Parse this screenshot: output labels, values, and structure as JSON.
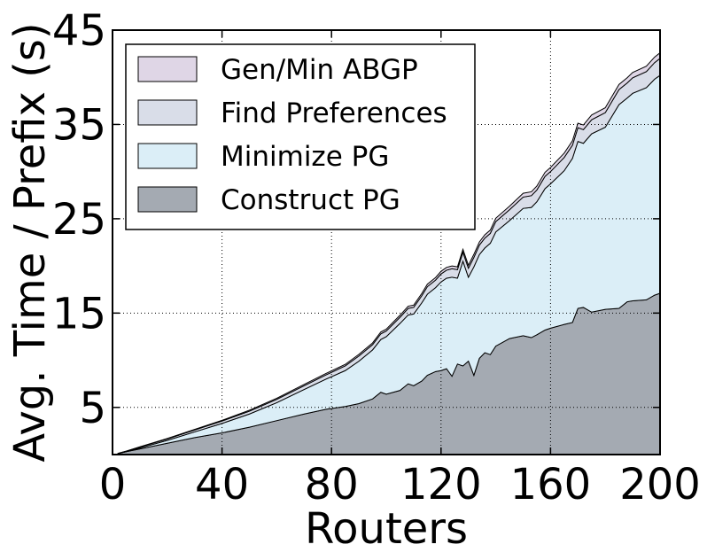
{
  "chart_data": {
    "type": "area",
    "stacked": true,
    "xlabel": "Routers",
    "ylabel": "Avg. Time / Prefix (s)",
    "xlim": [
      0,
      200
    ],
    "ylim": [
      0,
      45
    ],
    "xticks": [
      0,
      40,
      80,
      120,
      160,
      200
    ],
    "yticks": [
      5,
      15,
      25,
      35,
      45
    ],
    "grid": true,
    "legend_position": "upper-left",
    "x": [
      2,
      5,
      10,
      20,
      30,
      40,
      50,
      60,
      70,
      78,
      85,
      90,
      95,
      98,
      100,
      105,
      108,
      110,
      113,
      115,
      118,
      120,
      122,
      124,
      126,
      128,
      130,
      132,
      134,
      136,
      138,
      140,
      145,
      150,
      153,
      155,
      158,
      160,
      165,
      168,
      170,
      172,
      175,
      180,
      185,
      188,
      190,
      195,
      198,
      200
    ],
    "series": [
      {
        "name": "Construct PG",
        "color": "#a4aab2",
        "values": [
          0.1,
          0.3,
          0.6,
          1.2,
          1.8,
          2.3,
          2.9,
          3.6,
          4.3,
          4.8,
          5.1,
          5.4,
          5.9,
          6.6,
          6.4,
          6.8,
          7.5,
          7.3,
          7.8,
          8.4,
          8.8,
          8.9,
          9.1,
          8.3,
          9.6,
          9.4,
          9.9,
          8.4,
          10.2,
          10.8,
          10.6,
          11.5,
          12.3,
          12.6,
          12.4,
          12.7,
          13.2,
          13.4,
          13.8,
          14.0,
          15.5,
          15.6,
          15.1,
          15.4,
          15.5,
          16.2,
          16.3,
          16.4,
          16.9,
          17.1
        ]
      },
      {
        "name": "Minimize PG",
        "color": "#dbeef7",
        "values": [
          0.0,
          0.0,
          0.1,
          0.3,
          0.6,
          1.0,
          1.4,
          1.9,
          2.6,
          3.2,
          3.8,
          4.5,
          5.2,
          5.6,
          6.1,
          7.1,
          7.3,
          7.6,
          8.3,
          8.6,
          8.9,
          9.4,
          9.6,
          10.5,
          9.1,
          11.1,
          8.9,
          11.5,
          11.0,
          11.1,
          11.8,
          12.1,
          12.5,
          13.5,
          13.8,
          14.1,
          15.0,
          15.3,
          16.3,
          17.4,
          17.7,
          17.4,
          18.9,
          19.3,
          21.6,
          21.6,
          22.0,
          22.5,
          22.9,
          23.1
        ]
      },
      {
        "name": "Find Preferences",
        "color": "#d9dde8",
        "values": [
          0.02,
          0.05,
          0.1,
          0.15,
          0.2,
          0.25,
          0.3,
          0.35,
          0.4,
          0.45,
          0.5,
          0.55,
          0.55,
          0.6,
          0.6,
          0.65,
          0.7,
          0.7,
          0.75,
          0.8,
          0.8,
          0.85,
          0.85,
          0.9,
          0.9,
          0.95,
          0.95,
          1.0,
          1.0,
          1.05,
          1.05,
          1.1,
          1.15,
          1.2,
          1.25,
          1.25,
          1.3,
          1.3,
          1.4,
          1.4,
          1.45,
          1.45,
          1.5,
          1.55,
          1.6,
          1.6,
          1.65,
          1.7,
          1.75,
          1.8
        ]
      },
      {
        "name": "Gen/Min ABGP",
        "color": "#dfd6e6",
        "values": [
          0.01,
          0.02,
          0.03,
          0.05,
          0.07,
          0.08,
          0.1,
          0.12,
          0.14,
          0.15,
          0.16,
          0.18,
          0.19,
          0.2,
          0.2,
          0.22,
          0.23,
          0.24,
          0.25,
          0.26,
          0.27,
          0.28,
          0.29,
          0.3,
          0.3,
          0.31,
          0.32,
          0.33,
          0.34,
          0.35,
          0.35,
          0.36,
          0.38,
          0.4,
          0.41,
          0.42,
          0.43,
          0.44,
          0.46,
          0.47,
          0.48,
          0.49,
          0.5,
          0.52,
          0.54,
          0.55,
          0.56,
          0.58,
          0.59,
          0.6
        ]
      }
    ],
    "legend_order": [
      "Gen/Min ABGP",
      "Find Preferences",
      "Minimize PG",
      "Construct PG"
    ]
  }
}
